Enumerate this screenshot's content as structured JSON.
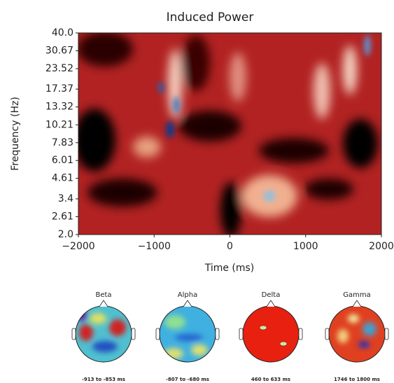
{
  "chart_data": {
    "type": "heatmap",
    "title": "Induced Power",
    "x_label": "Time (ms)",
    "y_label": "Frequency (Hz)",
    "xlim": [
      -2000,
      2000
    ],
    "xticks": [
      {
        "value": -2000,
        "label": "−2000"
      },
      {
        "value": -1000,
        "label": "−1000"
      },
      0,
      1000,
      2000
    ],
    "ylim": [
      2,
      40
    ],
    "log_y": true,
    "yticks": [
      {
        "value": 2,
        "label": "2.0"
      },
      2.61,
      3.4,
      4.61,
      6.01,
      7.83,
      10.21,
      13.32,
      17.37,
      23.52,
      30.67,
      {
        "value": 40,
        "label": "40.0"
      }
    ]
  },
  "topomaps": [
    {
      "title": "Beta",
      "caption": "-913 to -853 ms"
    },
    {
      "title": "Alpha",
      "caption": "-807 to -680 ms"
    },
    {
      "title": "Delta",
      "caption": "460 to 633 ms"
    },
    {
      "title": "Gamma",
      "caption": "1746 to 1800 ms"
    }
  ]
}
